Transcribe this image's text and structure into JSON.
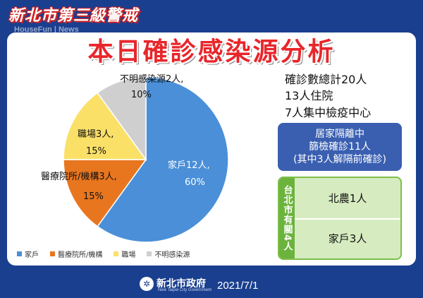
{
  "header": {
    "top_title": "新北市第三級警戒",
    "watermark": "HouseFun | News",
    "main_title": "本日確診感染源分析"
  },
  "chart_data": {
    "type": "pie",
    "slices": [
      {
        "category": "家戶",
        "label": "家戶12人,",
        "count": 12,
        "percent": 60,
        "color": "#4a8fd8"
      },
      {
        "category": "醫療院所/機構",
        "label": "醫療院所/機構3人,",
        "count": 3,
        "percent": 15,
        "color": "#e8761f"
      },
      {
        "category": "職場",
        "label": "職場3人,",
        "count": 3,
        "percent": 15,
        "color": "#fbe068"
      },
      {
        "category": "不明感染源",
        "label": "不明感染源2人,",
        "count": 2,
        "percent": 10,
        "color": "#cfcfcf"
      }
    ],
    "percent_labels": [
      "60%",
      "15%",
      "15%",
      "10%"
    ],
    "legend": [
      "家戶",
      "醫療院所/機構",
      "職場",
      "不明感染源"
    ],
    "legend_placement": "bottom"
  },
  "stats": {
    "total": "確診數總計20人",
    "hospital": "13人住院",
    "quarantine": "7人集中檢疫中心"
  },
  "home_isolation": {
    "line1": "居家隔離中",
    "line2": "篩檢確診11人",
    "line3": "(其中3人解隔前確診)"
  },
  "taipei": {
    "side_label": "台北市有關4人",
    "row1": "北農1人",
    "row2": "家戶3人"
  },
  "footer": {
    "logo_glyph": "✲",
    "org": "新北市政府",
    "org_en": "New Taipei City Government",
    "date": "2021/7/1"
  }
}
